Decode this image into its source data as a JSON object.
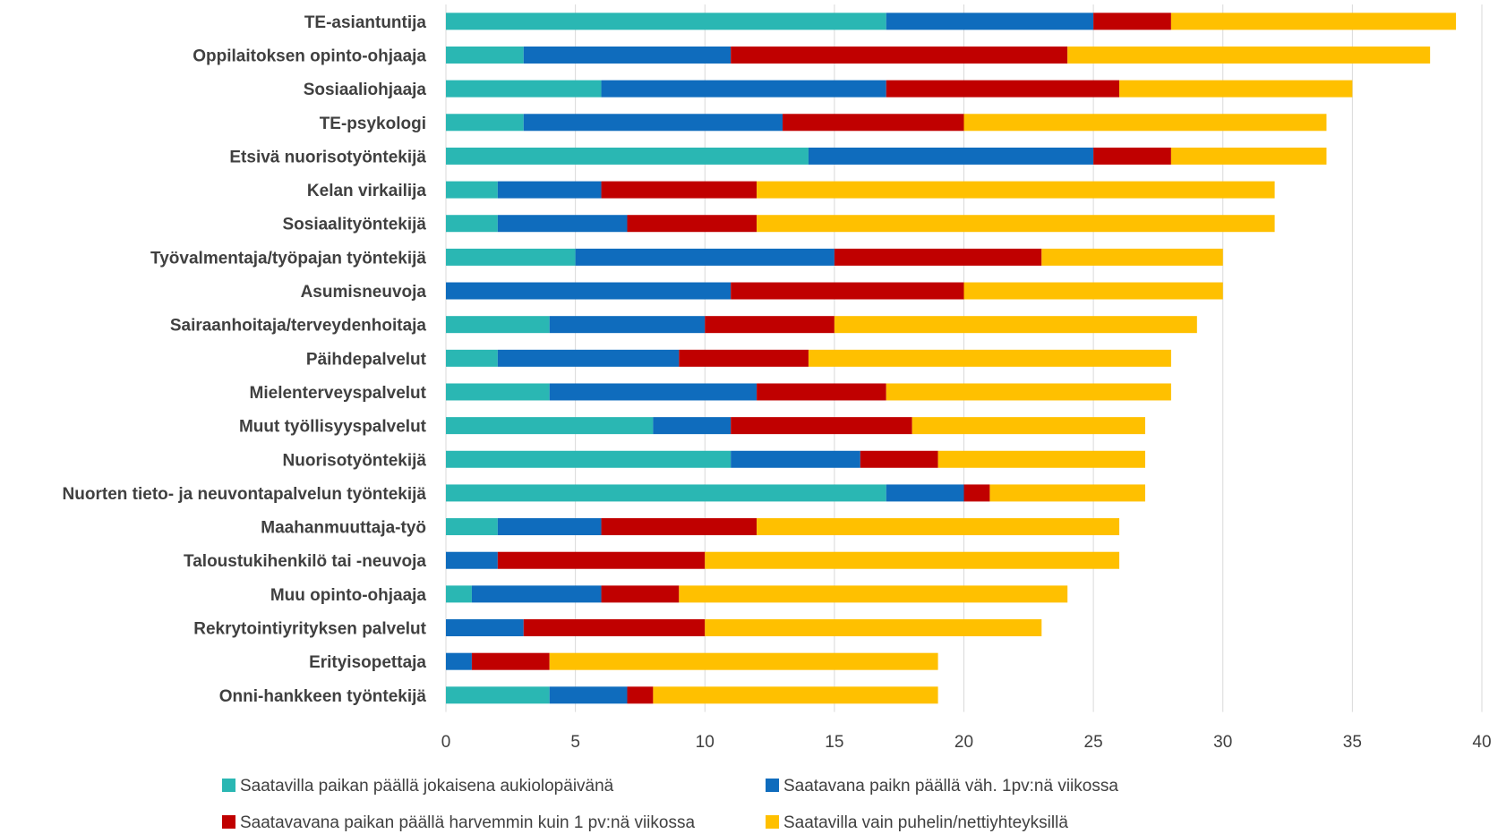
{
  "chart_data": {
    "type": "bar",
    "orientation": "horizontal",
    "stacked": true,
    "title": "",
    "xlabel": "",
    "ylabel": "",
    "xlim": [
      0,
      40
    ],
    "xticks": [
      0,
      5,
      10,
      15,
      20,
      25,
      30,
      35,
      40
    ],
    "grid": "vertical",
    "legend_position": "bottom",
    "categories": [
      "TE-asiantuntija",
      "Oppilaitoksen opinto-ohjaaja",
      "Sosiaaliohjaaja",
      "TE-psykologi",
      "Etsivä nuorisotyöntekijä",
      "Kelan virkailija",
      "Sosiaalityöntekijä",
      "Työvalmentaja/työpajan työntekijä",
      "Asumisneuvoja",
      "Sairaanhoitaja/terveydenhoitaja",
      "Päihdepalvelut",
      "Mielenterveyspalvelut",
      "Muut työllisyyspalvelut",
      "Nuorisotyöntekijä",
      "Nuorten tieto- ja neuvontapalvelun työntekijä",
      "Maahanmuuttaja-työ",
      "Taloustukihenkilö tai -neuvoja",
      "Muu opinto-ohjaaja",
      "Rekrytointiyrityksen palvelut",
      "Erityisopettaja",
      "Onni-hankkeen työntekijä"
    ],
    "series": [
      {
        "name": "Saatavilla paikan päällä jokaisena aukiolopäivänä",
        "color": "#2ab7b3",
        "values": [
          17,
          3,
          6,
          3,
          14,
          2,
          2,
          5,
          0,
          4,
          2,
          4,
          8,
          11,
          17,
          2,
          0,
          1,
          0,
          0,
          4
        ]
      },
      {
        "name": "Saatavana paikn päällä väh. 1pv:nä viikossa",
        "color": "#0f6cbd",
        "values": [
          8,
          8,
          11,
          10,
          11,
          4,
          5,
          10,
          11,
          6,
          7,
          8,
          3,
          5,
          3,
          4,
          2,
          5,
          3,
          1,
          3
        ]
      },
      {
        "name": "Saatavavana paikan päällä harvemmin kuin 1 pv:nä viikossa",
        "color": "#c00000",
        "values": [
          3,
          13,
          9,
          7,
          3,
          6,
          5,
          8,
          9,
          5,
          5,
          5,
          7,
          3,
          1,
          6,
          8,
          3,
          7,
          3,
          1
        ]
      },
      {
        "name": "Saatavilla vain puhelin/nettiyhteyksillä",
        "color": "#ffc000",
        "values": [
          11,
          14,
          9,
          14,
          6,
          20,
          20,
          7,
          10,
          14,
          14,
          11,
          9,
          8,
          6,
          14,
          16,
          15,
          13,
          15,
          11
        ]
      }
    ]
  }
}
